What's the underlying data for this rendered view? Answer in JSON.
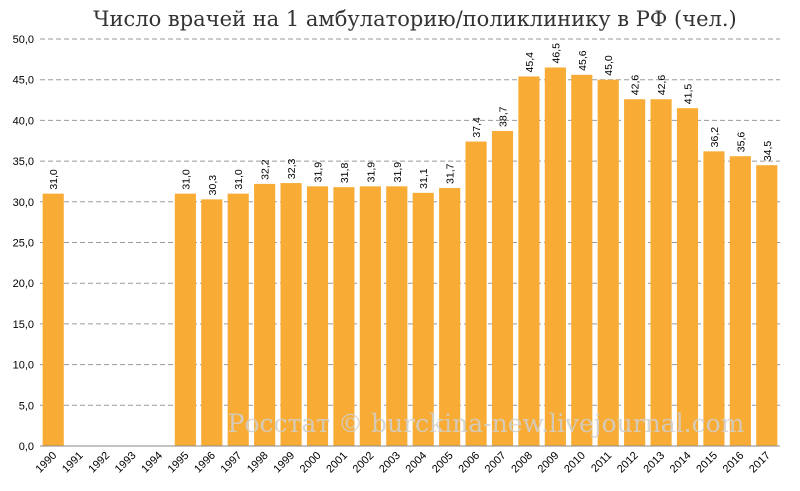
{
  "chart_data": {
    "type": "bar",
    "title": "Число врачей на 1 амбулаторию/поликлинику в РФ (чел.)",
    "xlabel": "",
    "ylabel": "",
    "ylim": [
      0,
      50
    ],
    "yticks": [
      "0,0",
      "5,0",
      "10,0",
      "15,0",
      "20,0",
      "25,0",
      "30,0",
      "35,0",
      "40,0",
      "45,0",
      "50,0"
    ],
    "grid": true,
    "legend": "none",
    "bar_color": "#f8ac35",
    "categories": [
      "1990",
      "1991",
      "1992",
      "1993",
      "1994",
      "1995",
      "1996",
      "1997",
      "1998",
      "1999",
      "2000",
      "2001",
      "2002",
      "2003",
      "2004",
      "2005",
      "2006",
      "2007",
      "2008",
      "2009",
      "2010",
      "2011",
      "2012",
      "2013",
      "2014",
      "2015",
      "2016",
      "2017"
    ],
    "values": [
      31.0,
      null,
      null,
      null,
      null,
      31.0,
      30.3,
      31.0,
      32.2,
      32.3,
      31.9,
      31.8,
      31.9,
      31.9,
      31.1,
      31.7,
      37.4,
      38.7,
      45.4,
      46.5,
      45.6,
      45.0,
      42.6,
      42.6,
      41.5,
      36.2,
      35.6,
      34.5
    ],
    "data_labels": [
      "31,0",
      "",
      "",
      "",
      "",
      "31,0",
      "30,3",
      "31,0",
      "32,2",
      "32,3",
      "31,9",
      "31,8",
      "31,9",
      "31,9",
      "31,1",
      "31,7",
      "37,4",
      "38,7",
      "45,4",
      "46,5",
      "45,6",
      "45,0",
      "42,6",
      "42,6",
      "41,5",
      "36,2",
      "35,6",
      "34,5"
    ],
    "watermark": "Росстат © burckina-new.livejournal.com"
  }
}
